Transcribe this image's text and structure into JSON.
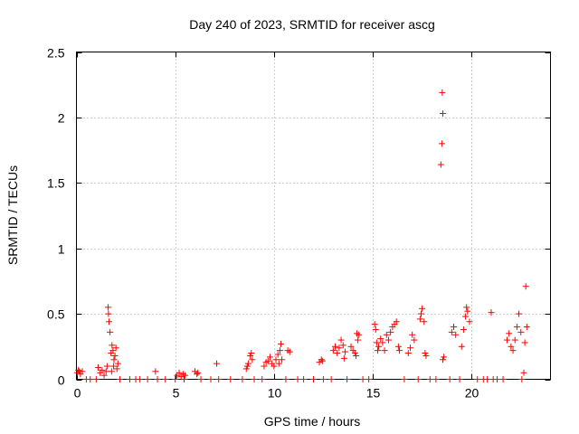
{
  "chart_data": {
    "type": "scatter",
    "title": "Day 240 of 2023, SRMTID for receiver ascg",
    "xlabel": "GPS time / hours",
    "ylabel": "SRMTID / TECUs",
    "xlim": [
      0,
      24
    ],
    "ylim": [
      0,
      2.5
    ],
    "xticks": [
      0,
      5,
      10,
      15,
      20
    ],
    "yticks": [
      0,
      0.5,
      1,
      1.5,
      2,
      2.5
    ],
    "xtick_labels": [
      "0",
      "5",
      "10",
      "15",
      "20"
    ],
    "ytick_labels": [
      "0",
      "0.5",
      "1",
      "1.5",
      "2",
      "2.5"
    ],
    "grid": true,
    "marker": "+",
    "color": "#ff0000",
    "series": [
      {
        "name": "SRMTID",
        "points": [
          [
            0.05,
            0.05
          ],
          [
            0.1,
            0.07
          ],
          [
            0.15,
            0.06
          ],
          [
            0.2,
            0.04
          ],
          [
            0.3,
            0.06
          ],
          [
            0.5,
            0.0
          ],
          [
            0.7,
            0.0
          ],
          [
            1.0,
            0.0
          ],
          [
            1.1,
            0.09
          ],
          [
            1.2,
            0.05
          ],
          [
            1.3,
            0.07
          ],
          [
            1.4,
            0.03
          ],
          [
            1.5,
            0.06
          ],
          [
            1.55,
            0.1
          ],
          [
            1.6,
            0.55
          ],
          [
            1.62,
            0.5
          ],
          [
            1.65,
            0.44
          ],
          [
            1.7,
            0.36
          ],
          [
            1.75,
            0.2
          ],
          [
            1.8,
            0.26
          ],
          [
            1.85,
            0.22
          ],
          [
            1.9,
            0.15
          ],
          [
            1.95,
            0.18
          ],
          [
            2.0,
            0.24
          ],
          [
            2.05,
            0.08
          ],
          [
            2.1,
            0.12
          ],
          [
            1.78,
            0.06
          ],
          [
            1.88,
            0.1
          ],
          [
            2.2,
            0.0
          ],
          [
            2.7,
            0.0
          ],
          [
            3.0,
            0.0
          ],
          [
            3.2,
            0.0
          ],
          [
            3.6,
            0.0
          ],
          [
            4.0,
            0.06
          ],
          [
            4.1,
            0.0
          ],
          [
            4.5,
            0.0
          ],
          [
            5.0,
            0.0
          ],
          [
            5.1,
            0.03
          ],
          [
            5.2,
            0.05
          ],
          [
            5.3,
            0.02
          ],
          [
            5.4,
            0.04
          ],
          [
            5.5,
            0.03
          ],
          [
            5.45,
            0.0
          ],
          [
            6.0,
            0.06
          ],
          [
            6.1,
            0.04
          ],
          [
            6.15,
            0.05
          ],
          [
            6.3,
            0.0
          ],
          [
            6.8,
            0.0
          ],
          [
            7.1,
            0.12
          ],
          [
            7.2,
            0.0
          ],
          [
            7.8,
            0.0
          ],
          [
            8.4,
            0.0
          ],
          [
            8.6,
            0.08
          ],
          [
            8.7,
            0.12
          ],
          [
            8.8,
            0.18
          ],
          [
            8.85,
            0.2
          ],
          [
            8.9,
            0.15
          ],
          [
            8.65,
            0.1
          ],
          [
            9.0,
            0.0
          ],
          [
            9.4,
            0.0
          ],
          [
            9.5,
            0.1
          ],
          [
            9.6,
            0.13
          ],
          [
            9.7,
            0.14
          ],
          [
            9.8,
            0.17
          ],
          [
            9.9,
            0.12
          ],
          [
            10.0,
            0.1
          ],
          [
            10.1,
            0.15
          ],
          [
            10.2,
            0.19
          ],
          [
            10.25,
            0.12
          ],
          [
            10.3,
            0.22
          ],
          [
            10.35,
            0.27
          ],
          [
            10.4,
            0.15
          ],
          [
            10.6,
            0.0
          ],
          [
            10.7,
            0.22
          ],
          [
            10.8,
            0.21
          ],
          [
            11.2,
            0.0
          ],
          [
            11.5,
            0.0
          ],
          [
            12.0,
            0.0
          ],
          [
            12.3,
            0.13
          ],
          [
            12.4,
            0.15
          ],
          [
            12.45,
            0.14
          ],
          [
            12.5,
            0.0
          ],
          [
            12.9,
            0.0
          ],
          [
            13.0,
            0.22
          ],
          [
            13.1,
            0.25
          ],
          [
            13.2,
            0.2
          ],
          [
            13.3,
            0.24
          ],
          [
            13.4,
            0.3
          ],
          [
            13.5,
            0.26
          ],
          [
            13.55,
            0.16
          ],
          [
            13.6,
            0.21
          ],
          [
            13.7,
            0.0
          ],
          [
            13.9,
            0.25
          ],
          [
            14.0,
            0.22
          ],
          [
            14.1,
            0.2
          ],
          [
            14.2,
            0.35
          ],
          [
            14.25,
            0.3
          ],
          [
            14.3,
            0.34
          ],
          [
            14.15,
            0.18
          ],
          [
            14.5,
            0.0
          ],
          [
            14.8,
            0.0
          ],
          [
            15.1,
            0.42
          ],
          [
            15.15,
            0.38
          ],
          [
            15.2,
            0.28
          ],
          [
            15.25,
            0.22
          ],
          [
            15.3,
            0.25
          ],
          [
            15.4,
            0.31
          ],
          [
            15.5,
            0.28
          ],
          [
            15.6,
            0.22
          ],
          [
            15.7,
            0.34
          ],
          [
            15.8,
            0.3
          ],
          [
            15.9,
            0.36
          ],
          [
            16.0,
            0.4
          ],
          [
            16.1,
            0.42
          ],
          [
            16.2,
            0.44
          ],
          [
            16.3,
            0.25
          ],
          [
            16.35,
            0.22
          ],
          [
            16.6,
            0.0
          ],
          [
            16.8,
            0.2
          ],
          [
            16.9,
            0.24
          ],
          [
            17.0,
            0.34
          ],
          [
            17.1,
            0.3
          ],
          [
            17.3,
            0.0
          ],
          [
            17.4,
            0.46
          ],
          [
            17.45,
            0.5
          ],
          [
            17.5,
            0.54
          ],
          [
            17.6,
            0.44
          ],
          [
            17.65,
            0.2
          ],
          [
            17.7,
            0.18
          ],
          [
            17.9,
            0.0
          ],
          [
            18.2,
            0.0
          ],
          [
            18.45,
            1.64
          ],
          [
            18.5,
            1.8
          ],
          [
            18.55,
            2.03
          ],
          [
            18.52,
            2.19
          ],
          [
            18.6,
            0.17
          ],
          [
            18.55,
            0.15
          ],
          [
            18.9,
            0.0
          ],
          [
            19.0,
            0.36
          ],
          [
            19.1,
            0.4
          ],
          [
            19.2,
            0.34
          ],
          [
            19.4,
            0.0
          ],
          [
            19.5,
            0.25
          ],
          [
            19.6,
            0.38
          ],
          [
            19.7,
            0.48
          ],
          [
            19.8,
            0.52
          ],
          [
            19.75,
            0.55
          ],
          [
            19.9,
            0.44
          ],
          [
            20.3,
            0.0
          ],
          [
            20.6,
            0.0
          ],
          [
            20.8,
            0.0
          ],
          [
            21.0,
            0.51
          ],
          [
            21.1,
            0.0
          ],
          [
            21.3,
            0.0
          ],
          [
            21.6,
            0.0
          ],
          [
            21.8,
            0.3
          ],
          [
            21.9,
            0.35
          ],
          [
            22.0,
            0.25
          ],
          [
            22.1,
            0.22
          ],
          [
            22.2,
            0.3
          ],
          [
            22.3,
            0.4
          ],
          [
            22.4,
            0.5
          ],
          [
            22.5,
            0.36
          ],
          [
            22.55,
            0.0
          ],
          [
            22.7,
            0.28
          ],
          [
            22.75,
            0.71
          ],
          [
            22.8,
            0.4
          ],
          [
            22.65,
            0.05
          ]
        ]
      }
    ]
  }
}
